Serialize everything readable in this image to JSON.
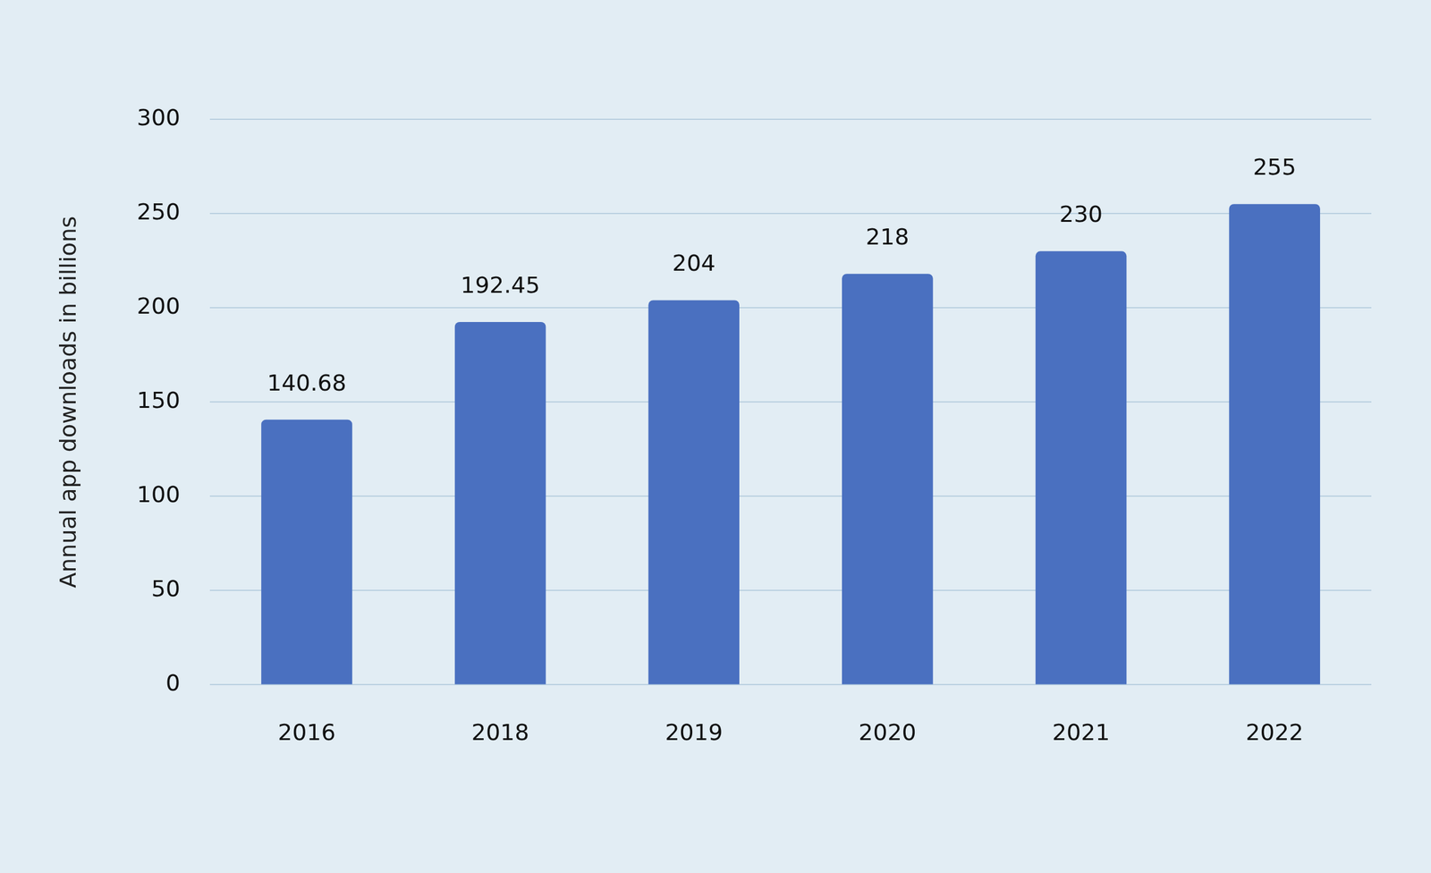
{
  "chart_data": {
    "type": "bar",
    "y_label": "Annual app downloads in billions",
    "categories": [
      "2016",
      "2018",
      "2019",
      "2020",
      "2021",
      "2022"
    ],
    "values": [
      140.68,
      192.45,
      204,
      218,
      230,
      255
    ],
    "color": "#4a70c0",
    "ylim": [
      0,
      300
    ],
    "yticks": [
      0,
      50,
      100,
      150,
      200,
      250,
      300
    ],
    "grid": true,
    "data_labels": true
  }
}
